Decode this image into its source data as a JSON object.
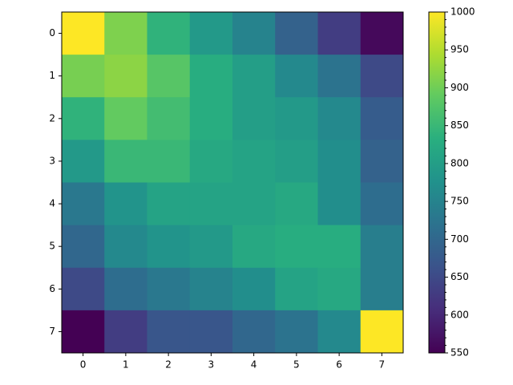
{
  "chart_data": {
    "type": "heatmap",
    "colormap": "viridis",
    "values": [
      [
        1000,
        910,
        840,
        790,
        750,
        690,
        630,
        560
      ],
      [
        905,
        920,
        880,
        830,
        800,
        760,
        720,
        650
      ],
      [
        840,
        890,
        860,
        830,
        800,
        790,
        760,
        680
      ],
      [
        790,
        850,
        850,
        820,
        810,
        800,
        770,
        690
      ],
      [
        730,
        780,
        810,
        810,
        810,
        820,
        770,
        710
      ],
      [
        700,
        760,
        780,
        790,
        820,
        830,
        830,
        740
      ],
      [
        650,
        710,
        730,
        750,
        770,
        810,
        820,
        740
      ],
      [
        550,
        630,
        670,
        670,
        700,
        720,
        760,
        1000
      ]
    ],
    "xticks": [
      0,
      1,
      2,
      3,
      4,
      5,
      6,
      7
    ],
    "yticks": [
      0,
      1,
      2,
      3,
      4,
      5,
      6,
      7
    ],
    "clim": [
      550,
      1000
    ],
    "cticks": [
      550,
      600,
      650,
      700,
      750,
      800,
      850,
      900,
      950,
      1000
    ]
  }
}
